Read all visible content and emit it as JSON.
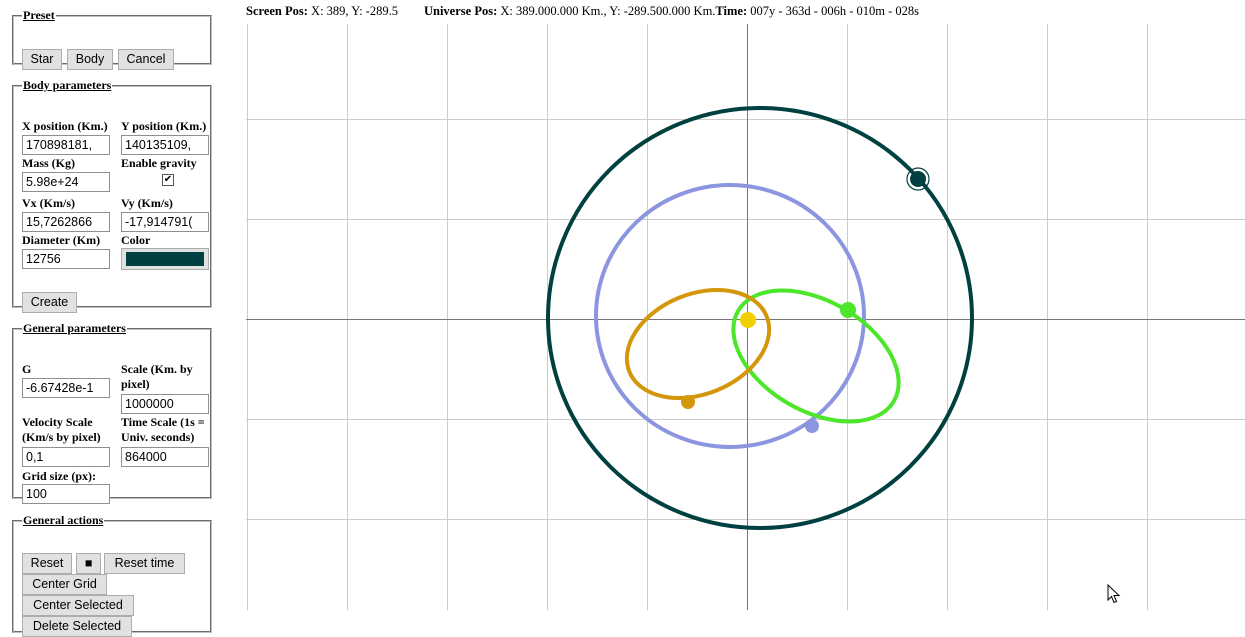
{
  "preset": {
    "legend": "Preset",
    "buttons": [
      "Star",
      "Body",
      "Cancel"
    ]
  },
  "body_params": {
    "legend": "Body parameters",
    "x_label": "X position (Km.)",
    "x_value": "170898181,",
    "y_label": "Y position (Km.)",
    "y_value": "140135109,",
    "mass_label": "Mass (Kg)",
    "mass_value": "5.98e+24",
    "gravity_label": "Enable gravity",
    "gravity_checked": true,
    "vx_label": "Vx (Km/s)",
    "vx_value": "15,7262866",
    "vy_label": "Vy (Km/s)",
    "vy_value": "-17,914791(",
    "diameter_label": "Diameter (Km)",
    "diameter_value": "12756",
    "color_label": "Color",
    "color_value": "#004040",
    "create_label": "Create"
  },
  "general_params": {
    "legend": "General parameters",
    "g_label": "G",
    "g_value": "-6.67428e-1",
    "scale_label": "Scale (Km. by pixel)",
    "scale_value": "1000000",
    "velocity_scale_label": "Velocity Scale (Km/s by pixel)",
    "velocity_scale_value": "0,1",
    "time_scale_label": "Time Scale (1s = Univ. seconds)",
    "time_scale_value": "864000",
    "grid_size_label": "Grid size (px):",
    "grid_size_value": "100"
  },
  "general_actions": {
    "legend": "General actions",
    "reset_label": "Reset",
    "stop_label": "■",
    "reset_time_label": "Reset time",
    "center_grid_label": "Center Grid",
    "center_selected_label": "Center Selected",
    "delete_selected_label": "Delete Selected"
  },
  "status": {
    "screen_pos_label": "Screen Pos:",
    "screen_pos_value": "X: 389, Y: -289.5",
    "universe_pos_label": "Universe Pos:",
    "universe_pos_value": "X: 389.000.000 Km., Y: -289.500.000 Km.",
    "time_label": "Time:",
    "time_value": "007y - 363d - 006h - 010m - 028s"
  },
  "simulation": {
    "star_color": "#f2d000",
    "bodies": [
      {
        "name": "dark-teal",
        "color": "#004040"
      },
      {
        "name": "periwinkle",
        "color": "#8c96e0"
      },
      {
        "name": "green",
        "color": "#4ce62a"
      },
      {
        "name": "gold",
        "color": "#d4960a"
      }
    ]
  }
}
